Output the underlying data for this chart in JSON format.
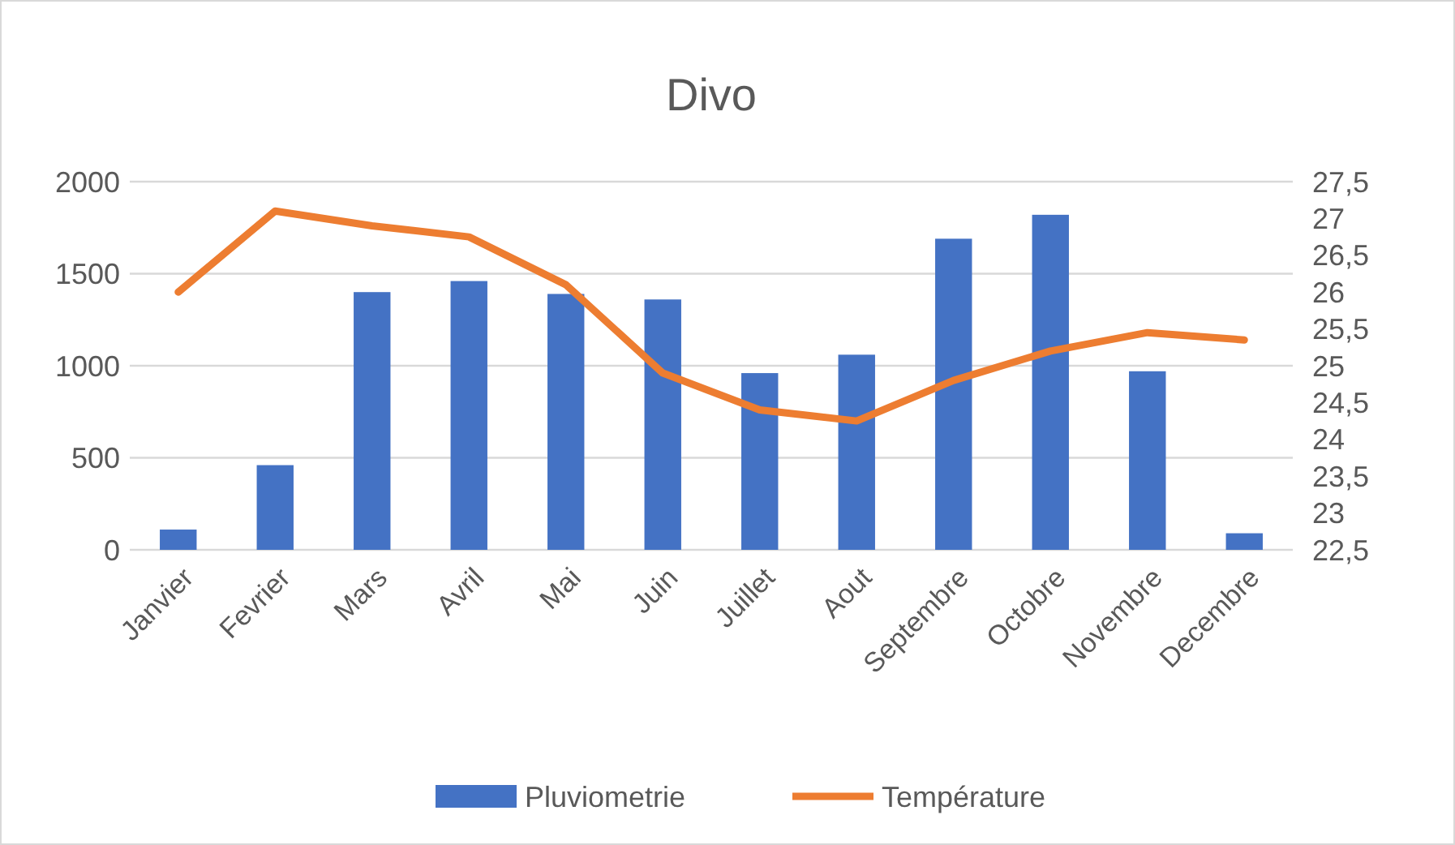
{
  "chart_data": {
    "type": "bar",
    "title": "Divo",
    "categories": [
      "Janvier",
      "Fevrier",
      "Mars",
      "Avril",
      "Mai",
      "Juin",
      "Juillet",
      "Aout",
      "Septembre",
      "Octobre",
      "Novembre",
      "Decembre"
    ],
    "series": [
      {
        "name": "Pluviometrie",
        "color": "#4472c4",
        "values": [
          110,
          460,
          1400,
          1460,
          1390,
          1360,
          960,
          1060,
          1690,
          1820,
          970,
          90
        ]
      },
      {
        "name": "Température",
        "type": "line",
        "axis": "y2",
        "color": "#ed7d31",
        "values": [
          26.0,
          27.1,
          26.9,
          26.75,
          26.1,
          24.9,
          24.4,
          24.25,
          24.8,
          25.2,
          25.45,
          25.35
        ]
      }
    ],
    "ylim": [
      0,
      2000
    ],
    "yticks": [
      0,
      500,
      1000,
      1500,
      2000
    ],
    "y2lim": [
      22.5,
      27.5
    ],
    "y2ticks": [
      {
        "value": 22.5,
        "label": "22,5"
      },
      23,
      {
        "value": 23.5,
        "label": "23,5"
      },
      24,
      {
        "value": 24.5,
        "label": "24,5"
      },
      25,
      {
        "value": 25.5,
        "label": "25,5"
      },
      26,
      {
        "value": 26.5,
        "label": "26,5"
      },
      27,
      {
        "value": 27.5,
        "label": "27,5"
      }
    ],
    "grid": "y",
    "legend": "bottom",
    "marker": "none",
    "line_style": "solid"
  }
}
